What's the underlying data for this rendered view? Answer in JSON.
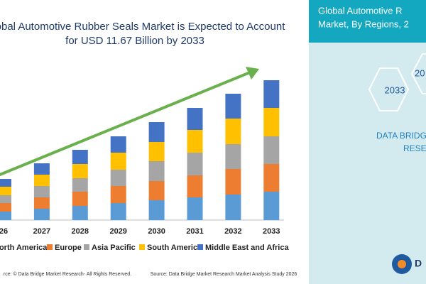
{
  "chart_data": {
    "type": "stacked_bar",
    "title": "Global Automotive Rubber Seals Market is Expected to Account for USD 11.67 Billion by 2033",
    "categories": [
      "26",
      "2027",
      "2028",
      "2029",
      "2030",
      "2031",
      "2032",
      "2033"
    ],
    "series": [
      {
        "name": "North America",
        "color": "#5b9bd5",
        "values": [
          12,
          16,
          20,
          24,
          28,
          32,
          36,
          40
        ]
      },
      {
        "name": "Europe",
        "color": "#ed7d31",
        "values": [
          12,
          16,
          20,
          24,
          27,
          31,
          36,
          39
        ]
      },
      {
        "name": "Asia Pacific",
        "color": "#a5a5a5",
        "values": [
          11,
          16,
          19,
          23,
          28,
          32,
          35,
          39
        ]
      },
      {
        "name": "South America",
        "color": "#ffc000",
        "values": [
          12,
          16,
          20,
          24,
          27,
          32,
          36,
          40
        ]
      },
      {
        "name": "Middle East and Africa",
        "color": "#4472c4",
        "values": [
          11,
          16,
          20,
          23,
          28,
          31,
          35,
          39
        ]
      }
    ],
    "ylim": [
      0,
      200
    ],
    "footer_left": "rce: © Data Bridge Market Research- All Rights Reserved.",
    "footer_right": "Source: Data Bridge Market Research Market Analysis Study 2026",
    "side_panel": {
      "title_line1": "Global Automotive R",
      "title_line2": "Market, By Regions, 2",
      "hex1": "2033",
      "hex2": "20",
      "brand1": "DATA BRIDG",
      "brand2": "RESEA",
      "logo": "D"
    }
  }
}
